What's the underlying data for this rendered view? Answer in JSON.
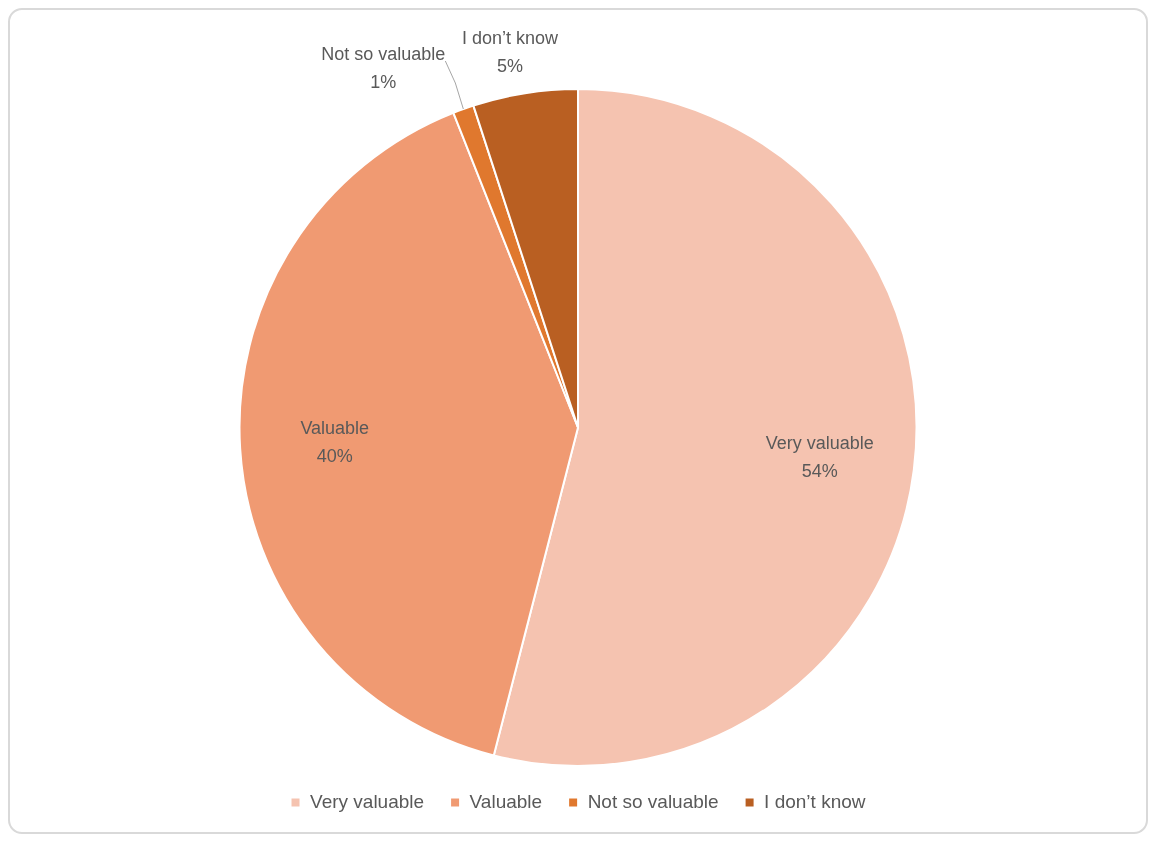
{
  "chart_data": {
    "type": "pie",
    "categories": [
      "Very valuable",
      "Valuable",
      "Not so valuable",
      "I don’t know"
    ],
    "values": [
      54,
      40,
      1,
      5
    ],
    "value_labels": [
      "54%",
      "40%",
      "1%",
      "5%"
    ],
    "colors": [
      "#f5c3b0",
      "#f09a72",
      "#e0782e",
      "#b95f22"
    ],
    "legend": "bottom"
  }
}
